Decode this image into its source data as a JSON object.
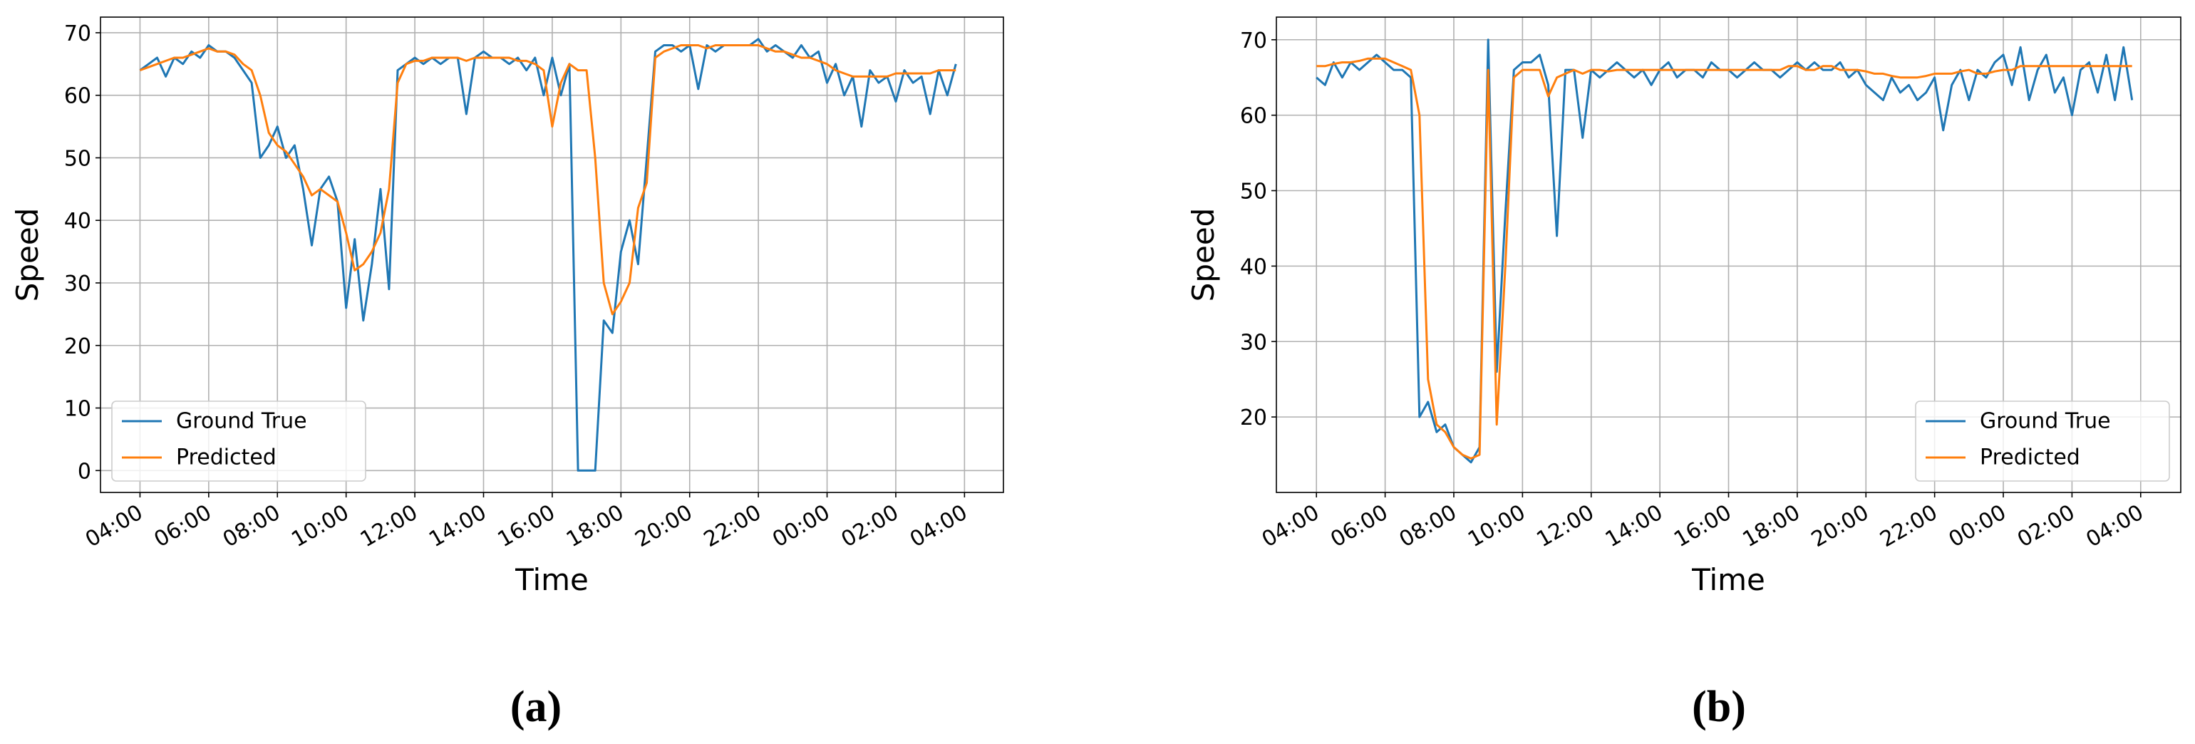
{
  "chart_data": [
    {
      "type": "line",
      "caption": "(a)",
      "xlabel": "Time",
      "ylabel": "Speed",
      "grid": true,
      "legend": "lower left",
      "x": [
        "04:00",
        "04:15",
        "04:30",
        "04:45",
        "05:00",
        "05:15",
        "05:30",
        "05:45",
        "06:00",
        "06:15",
        "06:30",
        "06:45",
        "07:00",
        "07:15",
        "07:30",
        "07:45",
        "08:00",
        "08:15",
        "08:30",
        "08:45",
        "09:00",
        "09:15",
        "09:30",
        "09:45",
        "10:00",
        "10:15",
        "10:30",
        "10:45",
        "11:00",
        "11:15",
        "11:30",
        "11:45",
        "12:00",
        "12:15",
        "12:30",
        "12:45",
        "13:00",
        "13:15",
        "13:30",
        "13:45",
        "14:00",
        "14:15",
        "14:30",
        "14:45",
        "15:00",
        "15:15",
        "15:30",
        "15:45",
        "16:00",
        "16:15",
        "16:30",
        "16:45",
        "17:00",
        "17:15",
        "17:30",
        "17:45",
        "18:00",
        "18:15",
        "18:30",
        "18:45",
        "19:00",
        "19:15",
        "19:30",
        "19:45",
        "20:00",
        "20:15",
        "20:30",
        "20:45",
        "21:00",
        "21:15",
        "21:30",
        "21:45",
        "22:00",
        "22:15",
        "22:30",
        "22:45",
        "23:00",
        "23:15",
        "23:30",
        "23:45",
        "00:00",
        "00:15",
        "00:30",
        "00:45",
        "01:00",
        "01:15",
        "01:30",
        "01:45",
        "02:00",
        "02:15",
        "02:30",
        "02:45",
        "03:00",
        "03:15",
        "03:30",
        "03:45"
      ],
      "xlim": [
        "02:51",
        "05:08"
      ],
      "xticks": [
        "04:00",
        "06:00",
        "08:00",
        "10:00",
        "12:00",
        "14:00",
        "16:00",
        "18:00",
        "20:00",
        "22:00",
        "00:00",
        "02:00",
        "04:00"
      ],
      "ylim": [
        -3.5,
        72.5
      ],
      "yticks": [
        0,
        10,
        20,
        30,
        40,
        50,
        60,
        70
      ],
      "series": [
        {
          "name": "Ground True",
          "color": "#1f77b4",
          "values": [
            64,
            65,
            66,
            63,
            66,
            65,
            67,
            66,
            68,
            67,
            67,
            66,
            64,
            62,
            50,
            52,
            55,
            50,
            52,
            45,
            36,
            45,
            47,
            43,
            26,
            37,
            24,
            33,
            45,
            29,
            64,
            65,
            66,
            65,
            66,
            65,
            66,
            66,
            57,
            66,
            67,
            66,
            66,
            65,
            66,
            64,
            66,
            60,
            66,
            60,
            65,
            0,
            0,
            0,
            24,
            22,
            35,
            40,
            33,
            50,
            67,
            68,
            68,
            67,
            68,
            61,
            68,
            67,
            68,
            68,
            68,
            68,
            69,
            67,
            68,
            67,
            66,
            68,
            66,
            67,
            62,
            65,
            60,
            63,
            55,
            64,
            62,
            63,
            59,
            64,
            62,
            63,
            57,
            64,
            60,
            65
          ]
        },
        {
          "name": "Predicted",
          "color": "#ff7f0e",
          "values": [
            64,
            64.5,
            65,
            65.5,
            66,
            66,
            66.5,
            67,
            67.5,
            67,
            67,
            66.5,
            65,
            64,
            60,
            54,
            52,
            51,
            49,
            47,
            44,
            45,
            44,
            43,
            38,
            32,
            33,
            35,
            38,
            45,
            62,
            65,
            65.5,
            65.5,
            66,
            66,
            66,
            66,
            65.5,
            66,
            66,
            66,
            66,
            66,
            65.5,
            65.5,
            65,
            64,
            55,
            62,
            65,
            64,
            64,
            50,
            30,
            25,
            27,
            30,
            42,
            46,
            66,
            67,
            67.5,
            68,
            68,
            68,
            67.5,
            68,
            68,
            68,
            68,
            68,
            68,
            67.5,
            67,
            67,
            66.5,
            66,
            66,
            65.5,
            65,
            64,
            63.5,
            63,
            63,
            63,
            63,
            63,
            63.5,
            63.5,
            63.5,
            63.5,
            63.5,
            64,
            64,
            64
          ]
        }
      ]
    },
    {
      "type": "line",
      "caption": "(b)",
      "xlabel": "Time",
      "ylabel": "Speed",
      "grid": true,
      "legend": "lower right",
      "x": [
        "04:00",
        "04:15",
        "04:30",
        "04:45",
        "05:00",
        "05:15",
        "05:30",
        "05:45",
        "06:00",
        "06:15",
        "06:30",
        "06:45",
        "07:00",
        "07:15",
        "07:30",
        "07:45",
        "08:00",
        "08:15",
        "08:30",
        "08:45",
        "09:00",
        "09:15",
        "09:30",
        "09:45",
        "10:00",
        "10:15",
        "10:30",
        "10:45",
        "11:00",
        "11:15",
        "11:30",
        "11:45",
        "12:00",
        "12:15",
        "12:30",
        "12:45",
        "13:00",
        "13:15",
        "13:30",
        "13:45",
        "14:00",
        "14:15",
        "14:30",
        "14:45",
        "15:00",
        "15:15",
        "15:30",
        "15:45",
        "16:00",
        "16:15",
        "16:30",
        "16:45",
        "17:00",
        "17:15",
        "17:30",
        "17:45",
        "18:00",
        "18:15",
        "18:30",
        "18:45",
        "19:00",
        "19:15",
        "19:30",
        "19:45",
        "20:00",
        "20:15",
        "20:30",
        "20:45",
        "21:00",
        "21:15",
        "21:30",
        "21:45",
        "22:00",
        "22:15",
        "22:30",
        "22:45",
        "23:00",
        "23:15",
        "23:30",
        "23:45",
        "00:00",
        "00:15",
        "00:30",
        "00:45",
        "01:00",
        "01:15",
        "01:30",
        "01:45",
        "02:00",
        "02:15",
        "02:30",
        "02:45",
        "03:00",
        "03:15",
        "03:30",
        "03:45"
      ],
      "xlim": [
        "02:50",
        "05:10"
      ],
      "xticks": [
        "04:00",
        "06:00",
        "08:00",
        "10:00",
        "12:00",
        "14:00",
        "16:00",
        "18:00",
        "20:00",
        "22:00",
        "00:00",
        "02:00",
        "04:00"
      ],
      "ylim": [
        10,
        73
      ],
      "yticks": [
        20,
        30,
        40,
        50,
        60,
        70
      ],
      "series": [
        {
          "name": "Ground True",
          "color": "#1f77b4",
          "values": [
            65,
            64,
            67,
            65,
            67,
            66,
            67,
            68,
            67,
            66,
            66,
            65,
            20,
            22,
            18,
            19,
            16,
            15,
            14,
            16,
            70,
            26,
            47,
            66,
            67,
            67,
            68,
            64,
            44,
            66,
            66,
            57,
            66,
            65,
            66,
            67,
            66,
            65,
            66,
            64,
            66,
            67,
            65,
            66,
            66,
            65,
            67,
            66,
            66,
            65,
            66,
            67,
            66,
            66,
            65,
            66,
            67,
            66,
            67,
            66,
            66,
            67,
            65,
            66,
            64,
            63,
            62,
            65,
            63,
            64,
            62,
            63,
            65,
            58,
            64,
            66,
            62,
            66,
            65,
            67,
            68,
            64,
            69,
            62,
            66,
            68,
            63,
            65,
            60,
            66,
            67,
            63,
            68,
            62,
            69,
            62
          ]
        },
        {
          "name": "Predicted",
          "color": "#ff7f0e",
          "values": [
            66.5,
            66.5,
            66.8,
            67,
            67,
            67.2,
            67.5,
            67.5,
            67.5,
            67,
            66.5,
            66,
            60,
            25,
            19,
            18,
            16,
            15,
            14.5,
            15,
            66,
            19,
            40,
            65,
            66,
            66,
            66,
            62.5,
            65,
            65.5,
            66,
            65.5,
            66,
            66,
            65.8,
            66,
            66,
            66,
            66,
            66,
            66,
            66,
            66,
            66,
            66,
            66,
            66,
            66,
            66,
            66,
            66,
            66,
            66,
            66,
            66,
            66.5,
            66.5,
            66,
            66,
            66.5,
            66.5,
            66,
            66,
            66,
            65.8,
            65.5,
            65.5,
            65.2,
            65,
            65,
            65,
            65.2,
            65.5,
            65.5,
            65.5,
            65.8,
            66,
            65.5,
            65.5,
            65.8,
            66,
            66,
            66.5,
            66.5,
            66.5,
            66.5,
            66.5,
            66.5,
            66.5,
            66.5,
            66.5,
            66.5,
            66.5,
            66.5,
            66.5,
            66.5
          ]
        }
      ]
    }
  ]
}
